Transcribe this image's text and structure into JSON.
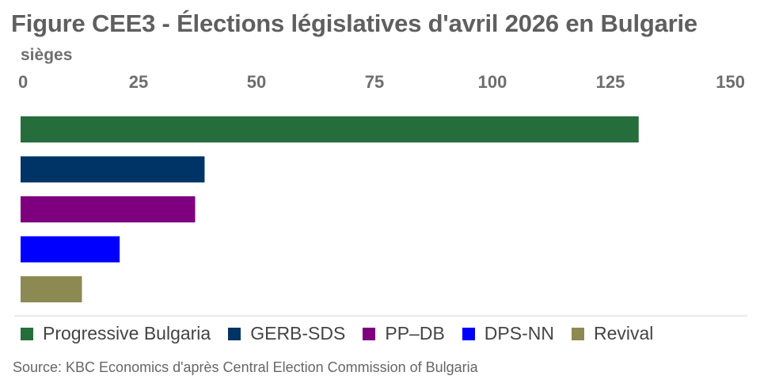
{
  "chart_data": {
    "type": "bar",
    "orientation": "horizontal",
    "title": "Figure CEE3 - Élections législatives d'avril 2026 en Bulgarie",
    "unit_label": "sièges",
    "xlim": [
      0,
      150
    ],
    "ticks": [
      "0",
      "25",
      "50",
      "75",
      "100",
      "125",
      "150"
    ],
    "tick_values": [
      0,
      25,
      50,
      75,
      100,
      125,
      150
    ],
    "categories": [
      "Progressive Bulgaria",
      "GERB-SDS",
      "PP–DB",
      "DPS-NN",
      "Revival"
    ],
    "values": [
      131,
      39,
      37,
      21,
      13
    ],
    "colors": [
      "#256e3c",
      "#003366",
      "#7f007f",
      "#0000ff",
      "#8c8a52"
    ],
    "legend_position": "bottom",
    "source": "Source: KBC Economics d'après Central Election Commission of Bulgaria"
  }
}
